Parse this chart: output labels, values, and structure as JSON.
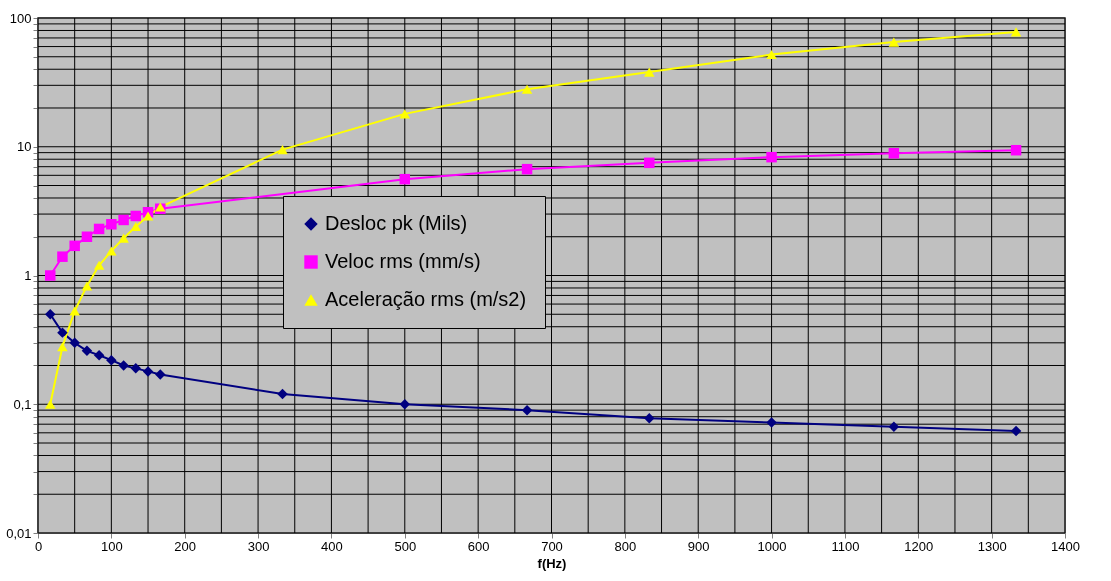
{
  "chart_data": {
    "type": "line",
    "xlabel": "f(Hz)",
    "x": [
      16.7,
      33.3,
      50,
      66.7,
      83.3,
      100,
      116.7,
      133.3,
      150,
      166.7,
      333.3,
      500,
      666.7,
      833.3,
      1000,
      1166.7,
      1333.3
    ],
    "series": [
      {
        "name": "Desloc   pk (Mils)",
        "color": "#000080",
        "marker": "diamond",
        "values": [
          0.5,
          0.36,
          0.3,
          0.26,
          0.24,
          0.22,
          0.2,
          0.19,
          0.18,
          0.17,
          0.12,
          0.1,
          0.09,
          0.078,
          0.072,
          0.067,
          0.062
        ]
      },
      {
        "name": "Veloc rms (mm/s)",
        "color": "#ff00ff",
        "marker": "square",
        "values": [
          1,
          1.4,
          1.7,
          2.0,
          2.3,
          2.5,
          2.7,
          2.9,
          3.1,
          3.3,
          null,
          5.6,
          6.7,
          7.5,
          8.3,
          8.9,
          9.4
        ]
      },
      {
        "name": "Aceleração rms (m/s2)",
        "color": "#ffff00",
        "marker": "triangle",
        "values": [
          0.1,
          0.28,
          0.53,
          0.83,
          1.2,
          1.55,
          1.95,
          2.4,
          2.9,
          3.4,
          9.5,
          18,
          28,
          38,
          52,
          65,
          78
        ]
      }
    ],
    "xlim": [
      0,
      1400
    ],
    "xticks": [
      0,
      {
        "value": 50,
        "label": null
      },
      100,
      {
        "value": 150,
        "label": null
      },
      200,
      {
        "value": 250,
        "label": null
      },
      300,
      {
        "value": 350,
        "label": null
      },
      400,
      {
        "value": 450,
        "label": null
      },
      500,
      {
        "value": 550,
        "label": null
      },
      600,
      {
        "value": 650,
        "label": null
      },
      700,
      {
        "value": 750,
        "label": null
      },
      800,
      {
        "value": 850,
        "label": null
      },
      900,
      {
        "value": 950,
        "label": null
      },
      1000,
      {
        "value": 1050,
        "label": null
      },
      1100,
      {
        "value": 1150,
        "label": null
      },
      1200,
      {
        "value": 1250,
        "label": null
      },
      1300,
      {
        "value": 1350,
        "label": null
      },
      1400
    ],
    "ylim": [
      0.01,
      100
    ],
    "yticks": [
      {
        "value": 0.01,
        "label": "0,01"
      },
      {
        "value": 0.02,
        "label": null
      },
      {
        "value": 0.03,
        "label": null
      },
      {
        "value": 0.04,
        "label": null
      },
      {
        "value": 0.05,
        "label": null
      },
      {
        "value": 0.06,
        "label": null
      },
      {
        "value": 0.07,
        "label": null
      },
      {
        "value": 0.08,
        "label": null
      },
      {
        "value": 0.09,
        "label": null
      },
      {
        "value": 0.1,
        "label": "0,1"
      },
      {
        "value": 0.2,
        "label": null
      },
      {
        "value": 0.3,
        "label": null
      },
      {
        "value": 0.4,
        "label": null
      },
      {
        "value": 0.5,
        "label": null
      },
      {
        "value": 0.6,
        "label": null
      },
      {
        "value": 0.7,
        "label": null
      },
      {
        "value": 0.8,
        "label": null
      },
      {
        "value": 0.9,
        "label": null
      },
      1,
      {
        "value": 2,
        "label": null
      },
      {
        "value": 3,
        "label": null
      },
      {
        "value": 4,
        "label": null
      },
      {
        "value": 5,
        "label": null
      },
      {
        "value": 6,
        "label": null
      },
      {
        "value": 7,
        "label": null
      },
      {
        "value": 8,
        "label": null
      },
      {
        "value": 9,
        "label": null
      },
      10,
      {
        "value": 20,
        "label": null
      },
      {
        "value": 30,
        "label": null
      },
      {
        "value": 40,
        "label": null
      },
      {
        "value": 50,
        "label": null
      },
      {
        "value": 60,
        "label": null
      },
      {
        "value": 70,
        "label": null
      },
      {
        "value": 80,
        "label": null
      },
      {
        "value": 90,
        "label": null
      },
      100
    ],
    "log": "y",
    "grid": true,
    "legend": "center",
    "line_style": "solid"
  }
}
